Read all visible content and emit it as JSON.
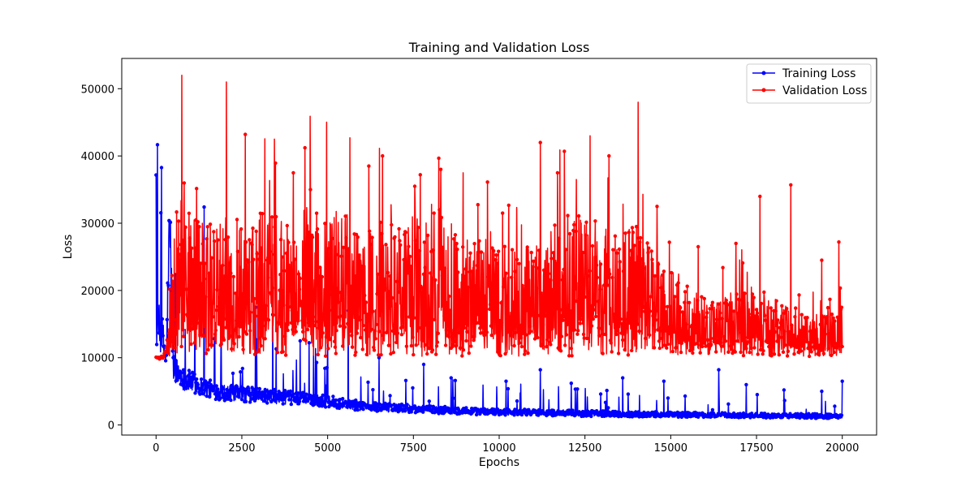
{
  "chart_data": {
    "type": "line",
    "title": "Training and Validation Loss",
    "xlabel": "Epochs",
    "ylabel": "Loss",
    "xlim": [
      -1000,
      21000
    ],
    "ylim": [
      -1500,
      54500
    ],
    "xticks": [
      0,
      2500,
      5000,
      7500,
      10000,
      12500,
      15000,
      17500,
      20000
    ],
    "xtick_labels": [
      "0",
      "2500",
      "5000",
      "7500",
      "10000",
      "12500",
      "15000",
      "17500",
      "20000"
    ],
    "yticks": [
      0,
      10000,
      20000,
      30000,
      40000,
      50000
    ],
    "ytick_labels": [
      "0",
      "10000",
      "20000",
      "30000",
      "40000",
      "50000"
    ],
    "grid": false,
    "legend_position": "top-right",
    "marker": "circle",
    "series": [
      {
        "name": "Training Loss",
        "color": "#0000ff",
        "x": [
          0,
          100,
          200,
          300,
          400,
          500,
          600,
          700,
          800,
          1000,
          1200,
          1400,
          1600,
          1800,
          2000,
          2500,
          3000,
          3500,
          4000,
          4500,
          5000,
          5500,
          6000,
          6500,
          7000,
          7500,
          8000,
          8500,
          9000,
          9500,
          10000,
          10500,
          11000,
          11500,
          12000,
          12500,
          13000,
          13500,
          14000,
          14500,
          15000,
          15500,
          16000,
          16500,
          17000,
          17500,
          18000,
          18500,
          19000,
          19500,
          20000
        ],
        "y": [
          15000,
          14200,
          12500,
          9500,
          30200,
          8800,
          8000,
          7500,
          6900,
          6400,
          6000,
          5600,
          5300,
          5000,
          4800,
          4600,
          4400,
          4200,
          4000,
          3800,
          3500,
          3200,
          2800,
          2600,
          2500,
          2400,
          2300,
          2200,
          2100,
          2000,
          2000,
          1900,
          1900,
          1800,
          1800,
          1700,
          1700,
          1650,
          1600,
          1600,
          1550,
          1500,
          1500,
          1450,
          1450,
          1400,
          1400,
          1350,
          1350,
          1300,
          1300
        ],
        "peaks_x": [
          400,
          1400,
          1900,
          2900,
          3400,
          4200,
          5000,
          5600,
          6500,
          7800,
          8600,
          10200,
          11200,
          12100,
          13600,
          14800,
          16400,
          17200,
          18300,
          19400,
          20000
        ],
        "peaks_y": [
          30200,
          32400,
          12000,
          17500,
          16400,
          12500,
          14500,
          17000,
          10000,
          9000,
          7000,
          6500,
          8200,
          6200,
          7000,
          6500,
          8200,
          6000,
          5200,
          5000,
          6500
        ]
      },
      {
        "name": "Validation Loss",
        "color": "#ff0000",
        "x": [
          0,
          100,
          200,
          300,
          400,
          500,
          600,
          700,
          800,
          1000,
          1500,
          2000,
          2500,
          3000,
          3500,
          4000,
          4500,
          5000,
          5500,
          6000,
          6500,
          7000,
          7500,
          8000,
          8500,
          9000,
          9500,
          10000,
          10500,
          11000,
          11500,
          12000,
          12500,
          13000,
          13500,
          14000,
          14500,
          15000,
          15500,
          16000,
          16500,
          17000,
          17500,
          18000,
          18500,
          19000,
          19500,
          20000
        ],
        "y": [
          10000,
          9900,
          10100,
          11000,
          14000,
          20000,
          22000,
          24000,
          23000,
          22000,
          21000,
          22000,
          21500,
          22000,
          22500,
          22000,
          23000,
          23000,
          22500,
          22000,
          21500,
          21000,
          22000,
          23000,
          21500,
          20000,
          20000,
          19500,
          19000,
          20000,
          21000,
          22000,
          22000,
          21000,
          20500,
          21000,
          19500,
          18000,
          16000,
          15000,
          15000,
          16000,
          15500,
          15000,
          14500,
          13500,
          14000,
          14500
        ],
        "peaks_x": [
          750,
          2050,
          2600,
          3450,
          4000,
          4500,
          5650,
          6200,
          6600,
          7700,
          8300,
          8950,
          10100,
          11200,
          11700,
          12250,
          12650,
          13200,
          14050,
          14600,
          15800,
          16900,
          17600,
          18500,
          19400,
          19900
        ],
        "peaks_y": [
          52000,
          51000,
          43200,
          42500,
          37500,
          35000,
          42700,
          38500,
          40000,
          37200,
          38000,
          37500,
          31500,
          42000,
          37500,
          36500,
          43000,
          40000,
          48000,
          32500,
          26500,
          27000,
          34000,
          35700,
          24500,
          27200
        ],
        "floor": 10200
      }
    ]
  }
}
